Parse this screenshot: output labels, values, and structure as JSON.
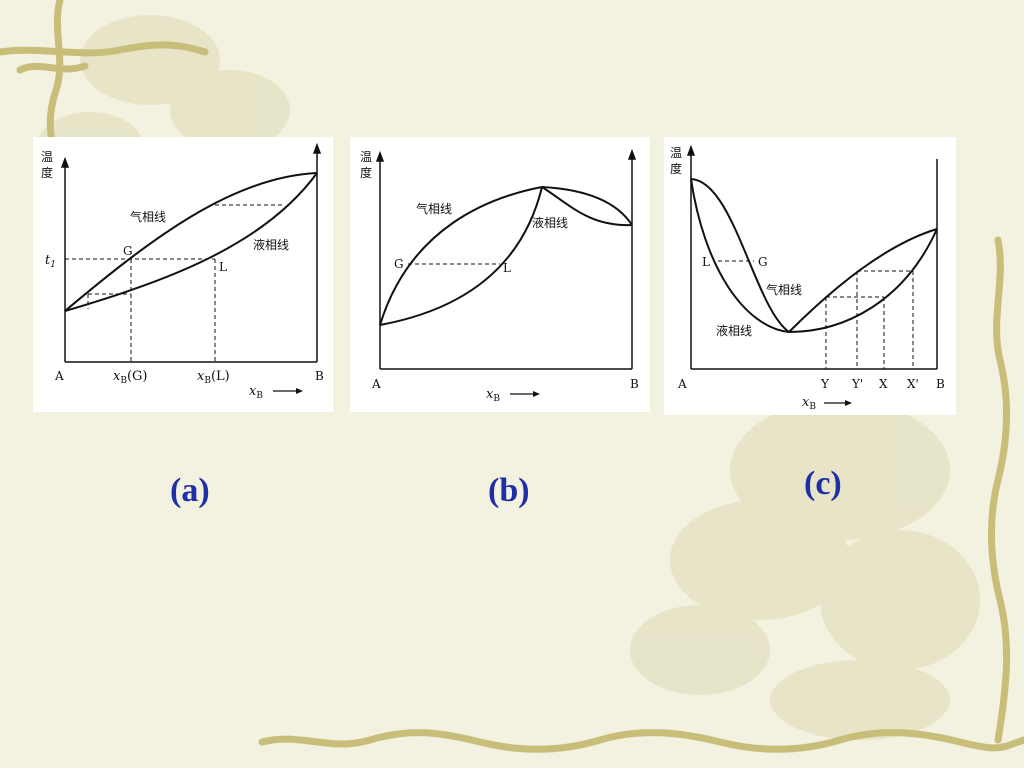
{
  "common": {
    "temp_label_1": "温",
    "temp_label_2": "度",
    "x_axis_sub": "B",
    "x_axis_var": "x",
    "vapor_line": "气相线",
    "liquid_line": "液相线"
  },
  "diagram_a": {
    "caption": "(a)",
    "left_end": "A",
    "right_end": "B",
    "t1_var": "t",
    "t1_sub": "1",
    "point_g": "G",
    "point_l": "L",
    "xbg_suffix": "(G)",
    "xbl_suffix": "(L)"
  },
  "diagram_b": {
    "caption": "(b)",
    "left_end": "A",
    "right_end": "B",
    "point_g": "G",
    "point_l": "L"
  },
  "diagram_c": {
    "caption": "(c)",
    "left_end": "A",
    "right_end": "B",
    "point_l": "L",
    "point_g": "G",
    "tick_y": "Y",
    "tick_y_prime": "Y'",
    "tick_x": "X",
    "tick_x_prime": "X'"
  },
  "colors": {
    "caption": "#1f2fa8",
    "background": "#f3f1df",
    "vine": "#c9bd7a"
  }
}
